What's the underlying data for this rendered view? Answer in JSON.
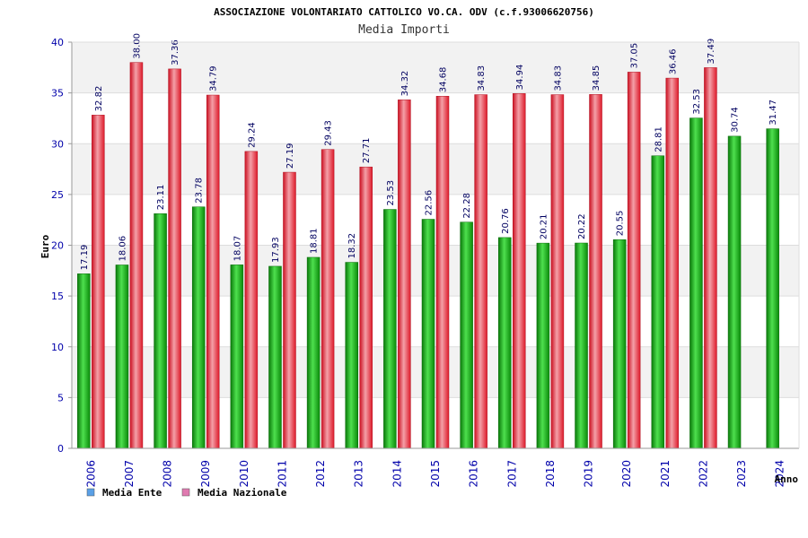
{
  "chart_data": {
    "type": "bar",
    "title": "ASSOCIAZIONE VOLONTARIATO CATTOLICO VO.CA. ODV (c.f.93006620756)",
    "subtitle": "Media Importi",
    "xlabel": "Anno",
    "ylabel": "Euro",
    "ylim": [
      0,
      40
    ],
    "yticks": [
      "0",
      "5",
      "10",
      "15",
      "20",
      "25",
      "30",
      "35",
      "40"
    ],
    "categories": [
      "2006",
      "2007",
      "2008",
      "2009",
      "2010",
      "2011",
      "2012",
      "2013",
      "2014",
      "2015",
      "2016",
      "2017",
      "2018",
      "2019",
      "2020",
      "2021",
      "2022",
      "2023",
      "2024"
    ],
    "series": [
      {
        "name": "Media Ente",
        "legend_color": "#5aa0e6",
        "bar_color": "#22bb22",
        "values": [
          17.19,
          18.06,
          23.11,
          23.78,
          18.07,
          17.93,
          18.81,
          18.32,
          23.53,
          22.56,
          22.28,
          20.76,
          20.21,
          20.22,
          20.55,
          28.81,
          32.53,
          30.74,
          31.47
        ],
        "labels": [
          "17.19",
          "18.06",
          "23.11",
          "23.78",
          "18.07",
          "17.93",
          "18.81",
          "18.32",
          "23.53",
          "22.56",
          "22.28",
          "20.76",
          "20.21",
          "20.22",
          "20.55",
          "28.81",
          "32.53",
          "30.74",
          "31.47"
        ]
      },
      {
        "name": "Media Nazionale",
        "legend_color": "#e07ab0",
        "bar_color": "#ee2233",
        "values": [
          32.82,
          38.0,
          37.36,
          34.79,
          29.24,
          27.19,
          29.43,
          27.71,
          34.32,
          34.68,
          34.83,
          34.94,
          34.83,
          34.85,
          37.05,
          36.46,
          37.49,
          null,
          null
        ],
        "labels": [
          "32.82",
          "38.00",
          "37.36",
          "34.79",
          "29.24",
          "27.19",
          "29.43",
          "27.71",
          "34.32",
          "34.68",
          "34.83",
          "34.94",
          "34.83",
          "34.85",
          "37.05",
          "36.46",
          "37.49",
          null,
          null
        ]
      }
    ],
    "grid": true,
    "legend_position": "bottom-left"
  }
}
